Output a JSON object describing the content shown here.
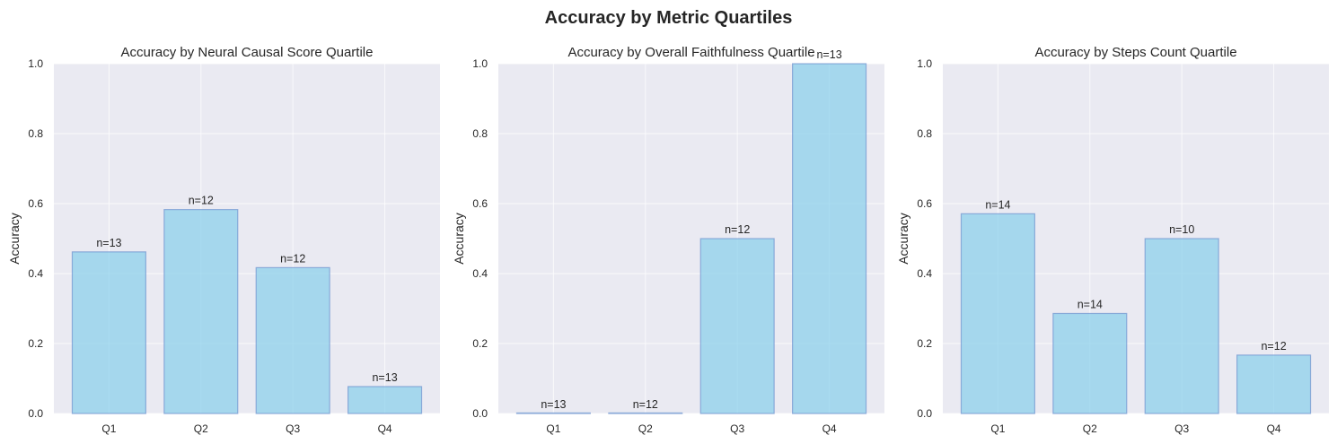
{
  "figure": {
    "title": "Accuracy by Metric Quartiles"
  },
  "colors": {
    "bar_fill": "#87CEEB",
    "bar_edge": "#6f93cf",
    "axes_bg": "#EAEAF2",
    "grid": "#ffffff",
    "text": "#262626"
  },
  "chart_data": [
    {
      "type": "bar",
      "title": "Accuracy by Neural Causal Score Quartile",
      "xlabel": "",
      "ylabel": "Accuracy",
      "ylim": [
        0,
        1.0
      ],
      "yticks": [
        "0.0",
        "0.2",
        "0.4",
        "0.6",
        "0.8",
        "1.0"
      ],
      "categories": [
        "Q1",
        "Q2",
        "Q3",
        "Q4"
      ],
      "values": [
        0.462,
        0.583,
        0.417,
        0.077
      ],
      "annotations": [
        "n=13",
        "n=12",
        "n=12",
        "n=13"
      ],
      "grid": true
    },
    {
      "type": "bar",
      "title": "Accuracy by Overall Faithfulness Quartile",
      "xlabel": "",
      "ylabel": "Accuracy",
      "ylim": [
        0,
        1.0
      ],
      "yticks": [
        "0.0",
        "0.2",
        "0.4",
        "0.6",
        "0.8",
        "1.0"
      ],
      "categories": [
        "Q1",
        "Q2",
        "Q3",
        "Q4"
      ],
      "values": [
        0.0,
        0.0,
        0.5,
        1.0
      ],
      "annotations": [
        "n=13",
        "n=12",
        "n=12",
        "n=13"
      ],
      "grid": true
    },
    {
      "type": "bar",
      "title": "Accuracy by Steps Count Quartile",
      "xlabel": "",
      "ylabel": "Accuracy",
      "ylim": [
        0,
        1.0
      ],
      "yticks": [
        "0.0",
        "0.2",
        "0.4",
        "0.6",
        "0.8",
        "1.0"
      ],
      "categories": [
        "Q1",
        "Q2",
        "Q3",
        "Q4"
      ],
      "values": [
        0.571,
        0.286,
        0.5,
        0.167
      ],
      "annotations": [
        "n=14",
        "n=14",
        "n=10",
        "n=12"
      ],
      "grid": true
    }
  ]
}
